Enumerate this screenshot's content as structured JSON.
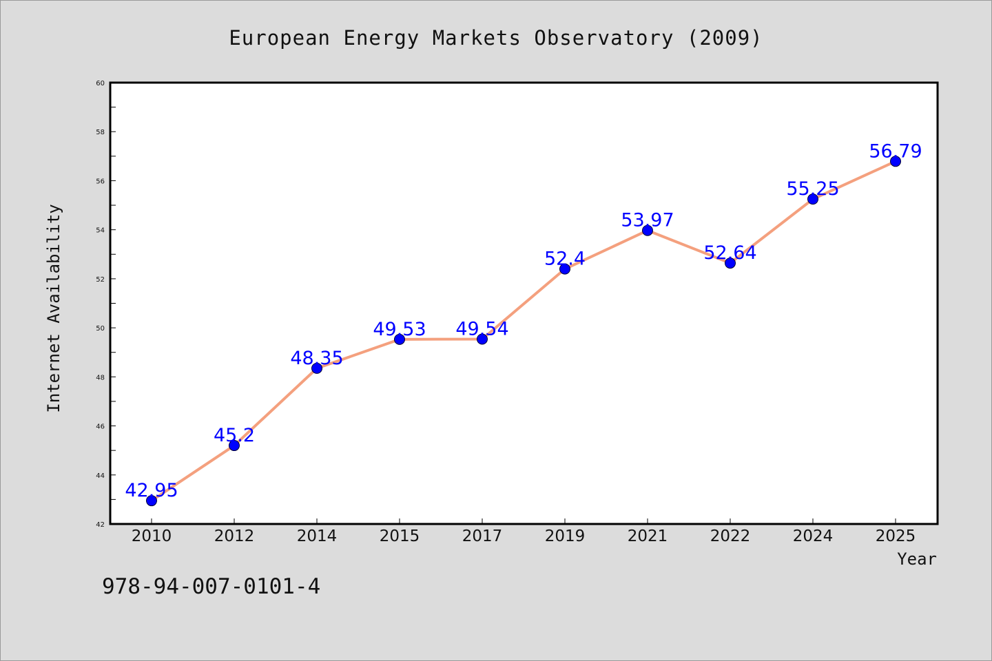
{
  "chart_data": {
    "type": "line",
    "title": "European Energy Markets Observatory (2009)",
    "xlabel": "Year",
    "ylabel": "Internet Availability",
    "categories": [
      "2010",
      "2012",
      "2014",
      "2015",
      "2017",
      "2019",
      "2021",
      "2022",
      "2024",
      "2025"
    ],
    "series": [
      {
        "values": [
          42.95,
          45.2,
          48.35,
          49.53,
          49.54,
          52.4,
          53.97,
          52.64,
          55.25,
          56.79
        ],
        "data_labels": [
          "42.95",
          "45.2",
          "48.35",
          "49.53",
          "49.54",
          "52.4",
          "53.97",
          "52.64",
          "55.25",
          "56.79"
        ],
        "line_color": "#f4a07e",
        "marker_color": "#0000ff"
      }
    ],
    "ylim": [
      42,
      60
    ],
    "yticks": [
      "42",
      "44",
      "46",
      "48",
      "50",
      "52",
      "54",
      "56",
      "58",
      "60"
    ],
    "grid": false,
    "legend": "none"
  },
  "footer": {
    "isbn": "978-94-007-0101-4"
  },
  "colors": {
    "background": "#dcdcdc",
    "plot_background": "#ffffff",
    "line": "#f4a07e",
    "marker": "#0000ff",
    "data_label": "#0000ff"
  }
}
